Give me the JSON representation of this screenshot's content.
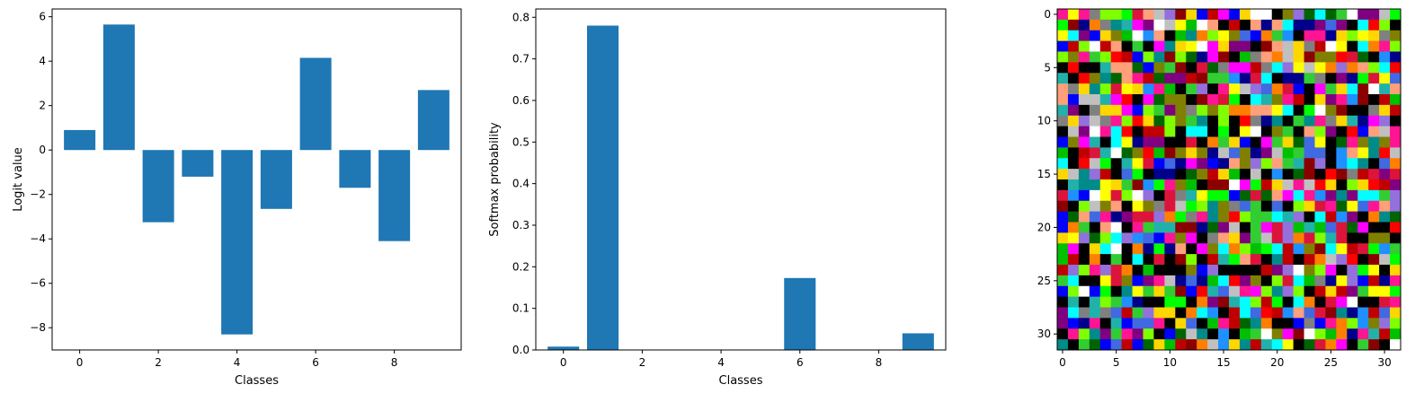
{
  "chart_data": [
    {
      "type": "bar",
      "name": "logits",
      "x": [
        0,
        1,
        2,
        3,
        4,
        5,
        6,
        7,
        8,
        9
      ],
      "values": [
        0.9,
        5.65,
        -3.25,
        -1.2,
        -8.3,
        -2.65,
        4.15,
        -1.7,
        -4.1,
        2.7
      ],
      "xlabel": "Classes",
      "ylabel": "Logit value",
      "xlim": [
        -0.7,
        9.7
      ],
      "ylim": [
        -9.0,
        6.35
      ],
      "xticks": [
        0,
        2,
        4,
        6,
        8
      ],
      "yticks": [
        -8,
        -6,
        -4,
        -2,
        0,
        2,
        4,
        6
      ],
      "bar_color": "#1f77b4",
      "grid": false
    },
    {
      "type": "bar",
      "name": "softmax",
      "x": [
        0,
        1,
        2,
        3,
        4,
        5,
        6,
        7,
        8,
        9
      ],
      "values": [
        0.008,
        0.78,
        0.0001,
        0.001,
        0.0,
        0.0002,
        0.173,
        0.0006,
        0.0,
        0.04
      ],
      "xlabel": "Classes",
      "ylabel": "Softmax probability",
      "xlim": [
        -0.7,
        9.7
      ],
      "ylim": [
        0,
        0.82
      ],
      "xticks": [
        0,
        2,
        4,
        6,
        8
      ],
      "yticks": [
        0.0,
        0.1,
        0.2,
        0.3,
        0.4,
        0.5,
        0.6,
        0.7,
        0.8
      ],
      "bar_color": "#1f77b4",
      "grid": false
    },
    {
      "type": "heatmap",
      "name": "input-image",
      "rows": 32,
      "cols": 32,
      "xticks": [
        0,
        5,
        10,
        15,
        20,
        25,
        30
      ],
      "yticks": [
        0,
        5,
        10,
        15,
        20,
        25,
        30
      ],
      "palette": [
        "#000000",
        "#000000",
        "#000000",
        "#000000",
        "#ff0000",
        "#00ff00",
        "#0000ff",
        "#ff00ff",
        "#00ffff",
        "#ffff00",
        "#8b0000",
        "#006400",
        "#00008b",
        "#800080",
        "#008b8b",
        "#808000",
        "#ff7f00",
        "#00c000",
        "#c00000",
        "#1e90ff",
        "#ff1493",
        "#7fff00",
        "#ffa07a",
        "#9370db",
        "#20b2aa",
        "#ffd700",
        "#c0c0c0",
        "#ffffff",
        "#dc143c",
        "#32cd32",
        "#4169e1",
        "#808080"
      ],
      "seed": 12345
    }
  ]
}
